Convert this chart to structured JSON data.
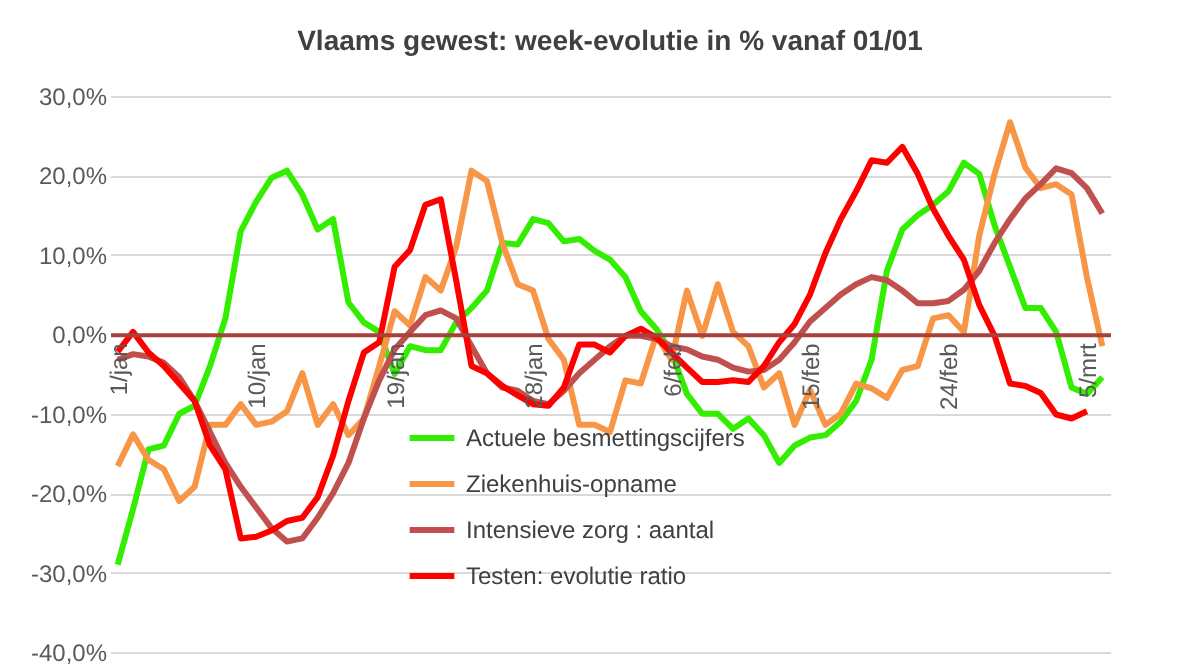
{
  "chart_data": {
    "type": "line",
    "title": "Vlaams gewest: week-evolutie in %  vanaf 01/01",
    "categories": [
      "1/jan",
      null,
      null,
      null,
      null,
      null,
      null,
      null,
      null,
      "10/jan",
      null,
      null,
      null,
      null,
      null,
      null,
      null,
      null,
      "19/jan",
      null,
      null,
      null,
      null,
      null,
      null,
      null,
      null,
      "28/jan",
      null,
      null,
      null,
      null,
      null,
      null,
      null,
      null,
      "6/feb",
      null,
      null,
      null,
      null,
      null,
      null,
      null,
      null,
      "15/feb",
      null,
      null,
      null,
      null,
      null,
      null,
      null,
      null,
      "24/feb",
      null,
      null,
      null,
      null,
      null,
      null,
      null,
      null,
      "5/mrt",
      null
    ],
    "series": [
      {
        "name": "Actuele besmettingscijfers",
        "color": "#33ee00",
        "values": [
          -29,
          -22,
          -14.5,
          -14,
          -10,
          -9,
          -4,
          2,
          13,
          16.7,
          19.7,
          20.6,
          17.6,
          13.2,
          14.5,
          4,
          1.5,
          0.3,
          -5,
          -1.5,
          -2,
          -2,
          1.5,
          3.3,
          5.5,
          11.5,
          11.3,
          14.5,
          14,
          11.7,
          12,
          10.5,
          9.4,
          7.2,
          2.9,
          0.7,
          -2.3,
          -7.5,
          -10,
          -10,
          -11.9,
          -10.6,
          -12.7,
          -16.2,
          -14,
          -13,
          -12.7,
          -11,
          -8.4,
          -3.2,
          8,
          13.2,
          15,
          16.3,
          18,
          21.6,
          20.2,
          13.7,
          8.5,
          3.3,
          3.3,
          0.3,
          -6.7,
          -7.5,
          -5.4
        ]
      },
      {
        "name": "Ziekenhuis-opname",
        "color": "#f79646",
        "values": [
          -16.6,
          -12.6,
          -15.8,
          -17,
          -21,
          -19.2,
          -11.4,
          -11.4,
          -8.8,
          -11.4,
          -11,
          -9.7,
          -4.9,
          -11.4,
          -8.8,
          -12.7,
          -10.6,
          -4,
          2.9,
          1.1,
          7.2,
          5.5,
          11,
          20.6,
          19.3,
          11.5,
          6.3,
          5.5,
          -0.6,
          -3.2,
          -11.4,
          -11.4,
          -12.3,
          -5.8,
          -6.2,
          -0.2,
          -3.2,
          5.5,
          -0.2,
          6.3,
          0.3,
          -1.5,
          -6.7,
          -4.9,
          -11.4,
          -7,
          -11.4,
          -10,
          -6.2,
          -6.8,
          -8,
          -4.5,
          -4,
          2,
          2.4,
          0.3,
          12.4,
          20.2,
          26.7,
          21,
          18.4,
          18.9,
          17.6,
          7.2,
          -1.5
        ]
      },
      {
        "name": "Intensieve zorg : aantal",
        "color": "#c0504d",
        "values": [
          -3.2,
          -2.5,
          -2.8,
          -3.6,
          -5.4,
          -8.4,
          -12.3,
          -16.2,
          -19.2,
          -21.8,
          -24.4,
          -26.1,
          -25.7,
          -23.1,
          -20,
          -16.2,
          -10.6,
          -5.8,
          -1.9,
          0.3,
          2.4,
          3,
          2,
          -1.5,
          -4.9,
          -6.7,
          -7.1,
          -8.4,
          -8.8,
          -7.1,
          -4.9,
          -3.2,
          -1.5,
          -0.2,
          -0.2,
          -0.6,
          -1.5,
          -1.9,
          -2.8,
          -3.2,
          -4.2,
          -4.7,
          -4.5,
          -3.2,
          -1,
          1.6,
          3.3,
          5,
          6.3,
          7.2,
          6.8,
          5.5,
          3.9,
          3.9,
          4.2,
          5.6,
          8,
          11.5,
          14.5,
          17.1,
          18.9,
          20.9,
          20.3,
          18.4,
          15.2
        ]
      },
      {
        "name": "Testen: evolutie ratio",
        "color": "#ff0000",
        "values": [
          -2.2,
          0.3,
          -2.3,
          -4,
          -6.2,
          -8.4,
          -14,
          -17,
          -25.7,
          -25.5,
          -24.7,
          -23.5,
          -23.1,
          -20.5,
          -15.3,
          -8.4,
          -2.3,
          -1,
          8.5,
          10.6,
          16.3,
          17,
          6.8,
          -4,
          -4.9,
          -6.5,
          -7.7,
          -8.8,
          -9,
          -6.7,
          -1.3,
          -1.3,
          -2.3,
          -0.2,
          0.7,
          -0.4,
          -2.3,
          -4.2,
          -6,
          -6,
          -5.8,
          -6,
          -4,
          -1,
          1.3,
          5,
          10.2,
          14.5,
          18,
          21.9,
          21.6,
          23.6,
          20.2,
          15.8,
          12.4,
          9.4,
          3.7,
          -0.2,
          -6.2,
          -6.5,
          -7.4,
          -10.1,
          -10.6,
          -9.7,
          null
        ]
      }
    ],
    "ylim": [
      -40,
      30
    ],
    "yticks": [
      {
        "value": -40,
        "label": "-40,0%"
      },
      {
        "value": -30,
        "label": "-30,0%"
      },
      {
        "value": -20,
        "label": "-20,0%"
      },
      {
        "value": -10,
        "label": "-10,0%"
      },
      {
        "value": 0,
        "label": "0,0%"
      },
      {
        "value": 10,
        "label": "10,0%"
      },
      {
        "value": 20,
        "label": "20,0%"
      },
      {
        "value": 30,
        "label": "30,0%"
      }
    ],
    "grid": "y",
    "legend": "bottom",
    "line_style": "solid"
  }
}
